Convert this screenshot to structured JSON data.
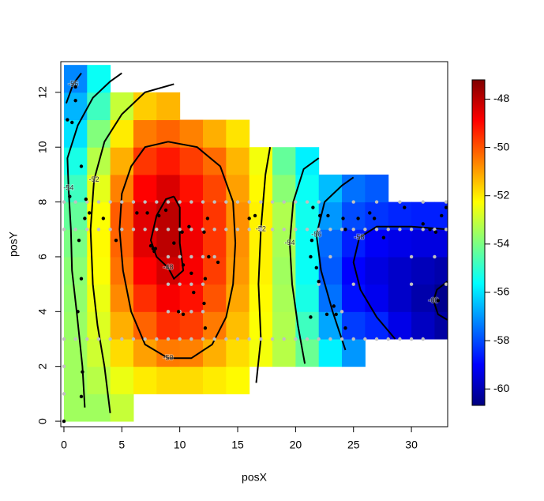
{
  "chart_data": {
    "type": "heatmap",
    "x_label": "posX",
    "y_label": "posY",
    "xlim": [
      -0.27,
      33.13
    ],
    "ylim": [
      -0.2,
      13.12
    ],
    "xticks": [
      0,
      5,
      10,
      15,
      20,
      25,
      30
    ],
    "yticks": [
      0,
      2,
      4,
      6,
      8,
      10,
      12
    ],
    "heatmap": {
      "x": [
        1,
        3,
        5,
        7,
        9,
        11,
        13,
        15,
        17,
        19,
        21,
        23,
        25,
        27,
        29,
        31,
        33
      ],
      "y": [
        0.5,
        1.5,
        2.5,
        3.5,
        4.5,
        5.5,
        6.5,
        7.5,
        8.5,
        9.5,
        10.5,
        11.5,
        12.5
      ],
      "z": [
        [
          -53.5,
          -53.5,
          -53.5,
          -53.6,
          -53.7,
          -53.8,
          -54,
          -54.3,
          -54.8,
          -55.3,
          -56,
          -56.6,
          -57.2
        ],
        [
          -53.5,
          -53.2,
          -52.9,
          -52.7,
          -52.5,
          -52.3,
          -52.2,
          -52.3,
          -52.6,
          -53.2,
          -53.9,
          -54.8,
          -55.5
        ],
        [
          -53,
          -52.5,
          -51.8,
          -51.2,
          -50.7,
          -50.4,
          -50.2,
          -50.1,
          -50.6,
          -51.2,
          -52,
          -53,
          null
        ],
        [
          null,
          -52,
          -51,
          -50.2,
          -49.5,
          -48.9,
          -48.5,
          -48.5,
          -48.9,
          -49.6,
          -50.5,
          -51.6,
          null
        ],
        [
          null,
          -51.8,
          -50.5,
          -49.5,
          -48.8,
          -48.3,
          -48,
          -48,
          -48.4,
          -49.2,
          -50.2,
          -51.3,
          null
        ],
        [
          null,
          -51.8,
          -50.6,
          -49.7,
          -49.1,
          -48.8,
          -48.7,
          -48.8,
          -49.1,
          -49.7,
          -50.6,
          null,
          null
        ],
        [
          null,
          -52,
          -51.2,
          -50.5,
          -50,
          -49.7,
          -49.6,
          -49.6,
          -49.8,
          -50.3,
          -51.2,
          null,
          null
        ],
        [
          null,
          -52.2,
          -51.8,
          -51.4,
          -51.1,
          -50.9,
          -50.8,
          -50.8,
          -51,
          -51.3,
          -51.9,
          null,
          null
        ],
        [
          null,
          null,
          -52.4,
          -52.3,
          -52.2,
          -52.1,
          -52.1,
          -52.1,
          -52.2,
          -52.4,
          null,
          null,
          null
        ],
        [
          null,
          null,
          -53.2,
          -53.3,
          -53.4,
          -53.5,
          -53.4,
          -53.3,
          -53.8,
          -54.3,
          null,
          null,
          null
        ],
        [
          null,
          null,
          -54.2,
          -54.8,
          -55.3,
          -55.5,
          -55.5,
          -55.4,
          -55.5,
          -55.8,
          null,
          null,
          null
        ],
        [
          null,
          null,
          -55.8,
          -56.8,
          -57.5,
          -57.8,
          -57.6,
          -57,
          -56.5,
          null,
          null,
          null,
          null
        ],
        [
          null,
          null,
          -57,
          -58.2,
          -58.8,
          -59,
          -58.6,
          -58,
          -57.5,
          null,
          null,
          null,
          null
        ],
        [
          null,
          null,
          null,
          -58.5,
          -59.2,
          -59.4,
          -59.1,
          -58.3,
          -57.8,
          null,
          null,
          null,
          null
        ],
        [
          null,
          null,
          null,
          -59.3,
          -59.7,
          -59.7,
          -59.3,
          -58.5,
          null,
          null,
          null,
          null,
          null
        ],
        [
          null,
          null,
          null,
          -59.8,
          -60.1,
          -59.9,
          -59.4,
          -58.6,
          null,
          null,
          null,
          null,
          null
        ],
        [
          null,
          null,
          null,
          -60.2,
          -60.5,
          -60.1,
          -59.4,
          -58.6,
          null,
          null,
          null,
          null,
          null
        ]
      ]
    },
    "colorbar": {
      "lim": [
        -60.68,
        -47.2
      ],
      "ticks": [
        -48,
        -50,
        -52,
        -54,
        -56,
        -58,
        -60
      ],
      "colors": [
        "#00007f",
        "#0000ff",
        "#007fff",
        "#00ffff",
        "#7fff7f",
        "#ffff00",
        "#ff7f00",
        "#ff0000",
        "#7f0000"
      ]
    },
    "contours": [
      {
        "level": -48,
        "x": [
          9.5,
          10,
          10,
          10.3,
          9.5,
          9,
          8,
          7.5,
          8,
          8.8,
          9.5
        ],
        "y": [
          8.2,
          7.8,
          6.5,
          5.5,
          5.2,
          5.6,
          6,
          6.6,
          7.5,
          8.1,
          8.2
        ]
      },
      {
        "level": -50,
        "x": [
          9,
          11.5,
          13.5,
          14.6,
          14.8,
          14.6,
          14,
          12.8,
          11,
          9,
          7,
          5.8,
          5.1,
          4.8,
          5,
          5.8,
          7,
          9
        ],
        "y": [
          10.2,
          10,
          9.3,
          8,
          6.5,
          5,
          3.8,
          2.8,
          2.3,
          2.3,
          2.8,
          4,
          5.5,
          7,
          8.3,
          9.3,
          10,
          10.2
        ]
      },
      {
        "level": -52,
        "x": [
          4,
          3.5,
          2.9,
          2.5,
          2.3,
          2.6,
          3.5,
          5,
          7,
          9.5
        ],
        "y": [
          0.3,
          2,
          3.5,
          5,
          7,
          8.8,
          10.2,
          11.2,
          12,
          12.3
        ]
      },
      {
        "level": -52,
        "x": [
          16.6,
          17,
          16.8,
          17,
          17.4,
          17.8
        ],
        "y": [
          1.4,
          3,
          5,
          7,
          9,
          10
        ]
      },
      {
        "level": -54,
        "x": [
          1.8,
          1.6,
          1.1,
          0.7,
          0.6,
          0.4,
          0.3,
          1.2,
          2.5,
          4,
          5
        ],
        "y": [
          0.5,
          2,
          4,
          5.5,
          7,
          8.5,
          9.6,
          10.8,
          11.8,
          12.4,
          12.7
        ]
      },
      {
        "level": -54,
        "x": [
          20.8,
          20.2,
          19.7,
          19.5,
          19.8,
          20.7,
          22
        ],
        "y": [
          2.1,
          3.5,
          5,
          6.5,
          8,
          9.2,
          9.6
        ]
      },
      {
        "level": -56,
        "x": [
          0.2,
          0.8,
          1.5
        ],
        "y": [
          11.6,
          12.3,
          12.7
        ]
      },
      {
        "level": -56,
        "x": [
          24.3,
          23.2,
          22.2,
          21.8,
          22.5,
          24,
          25
        ],
        "y": [
          2.6,
          4,
          5.5,
          6.8,
          8,
          8.6,
          8.9
        ]
      },
      {
        "level": -58,
        "x": [
          28.6,
          27,
          25.6,
          25,
          25.5,
          27,
          30,
          33.1
        ],
        "y": [
          3,
          3.8,
          4.8,
          5.8,
          6.7,
          7.1,
          7.1,
          7
        ]
      },
      {
        "level": -60,
        "x": [
          33.1,
          32.2,
          31.9,
          32.3,
          33.1
        ],
        "y": [
          5.1,
          4.8,
          4.4,
          3.9,
          3.7
        ]
      }
    ],
    "series": [
      {
        "color": "#c0c0c0",
        "x": [
          0,
          1,
          2,
          3,
          4,
          5,
          6,
          7,
          8,
          9,
          10,
          11,
          12,
          13,
          14,
          15,
          16,
          17,
          18,
          19,
          20,
          21,
          22,
          25,
          27,
          29,
          31,
          33,
          0,
          1,
          2,
          3,
          4,
          5,
          6,
          7,
          8,
          9,
          10,
          11,
          12,
          13,
          14,
          15,
          16,
          17,
          18,
          19,
          20,
          21,
          22,
          23,
          24,
          25,
          26,
          27,
          28,
          29,
          30,
          31,
          32,
          33,
          0,
          1,
          2,
          3,
          4,
          5,
          6,
          7,
          8,
          9,
          10,
          11,
          12,
          13,
          14,
          15,
          16,
          17,
          18,
          19,
          20,
          21,
          22,
          23,
          24,
          25,
          26,
          27,
          28,
          29,
          30,
          31,
          9,
          10,
          11,
          12,
          13,
          23,
          30,
          32,
          9,
          10,
          11,
          12,
          22,
          25,
          30,
          33,
          9,
          10,
          11,
          12,
          24,
          0,
          0,
          0
        ],
        "y": [
          8,
          8,
          8,
          8,
          8,
          8,
          8,
          8,
          8,
          8,
          8,
          8,
          8,
          8,
          8,
          8,
          8,
          8,
          8,
          8,
          8,
          8,
          8,
          8,
          8,
          8,
          8,
          8,
          7,
          7,
          7,
          7,
          7,
          7,
          7,
          7,
          7,
          7,
          7,
          7,
          7,
          7,
          7,
          7,
          7,
          7,
          7,
          7,
          7,
          7,
          7,
          7,
          7,
          7,
          7,
          7,
          7,
          7,
          7,
          7,
          7,
          7,
          3,
          3,
          3,
          3,
          3,
          3,
          3,
          3,
          3,
          3,
          3,
          3,
          3,
          3,
          3,
          3,
          3,
          3,
          3,
          3,
          3,
          3,
          3,
          3,
          3,
          3,
          3,
          3,
          3,
          3,
          3,
          3,
          6,
          6,
          6,
          6,
          6,
          6,
          6,
          6,
          5,
          5,
          5,
          5,
          5,
          5,
          5,
          5,
          4,
          4,
          4,
          4,
          4,
          0,
          1,
          2
        ]
      },
      {
        "color": "#000000",
        "x": [
          0,
          1.5,
          1.6,
          1.2,
          1.5,
          1.3,
          0.5,
          1.8,
          2.2,
          1.9,
          0.3,
          0.7,
          1,
          1,
          1.5,
          3.4,
          4.5,
          6.3,
          7.2,
          7.5,
          7.7,
          7.8,
          7.9,
          8.2,
          8.8,
          9.5,
          10.2,
          10.3,
          10.8,
          11,
          11.2,
          10.3,
          9.9,
          12.1,
          12.2,
          12.2,
          12.5,
          12.1,
          12.4,
          13.3,
          16,
          16.5,
          21.5,
          22.1,
          21.4,
          22.8,
          24.1,
          24.3,
          25.4,
          26.4,
          26.8,
          27.6,
          29.4,
          31,
          31.6,
          32.1,
          32.6,
          33,
          21.3,
          22,
          21.8,
          23.3,
          23.5,
          24.3,
          21.3,
          22.7,
          32.3
        ],
        "y": [
          0,
          0.9,
          1.8,
          4,
          5.2,
          6.6,
          8.2,
          7.4,
          7.6,
          8.1,
          11,
          10.9,
          11.7,
          12.2,
          9.3,
          7.4,
          6.6,
          7.6,
          7.6,
          6.4,
          6.3,
          6.2,
          6.3,
          7.5,
          7.7,
          6.5,
          6.9,
          5.7,
          7.1,
          5.4,
          4.7,
          3.9,
          4,
          4.3,
          3.4,
          5.2,
          6,
          6.9,
          7.4,
          5.8,
          7.4,
          7.5,
          7.8,
          7.5,
          6.6,
          7.5,
          7.4,
          7,
          7.4,
          7.6,
          7.4,
          6.7,
          7.8,
          7.2,
          7,
          6.9,
          7.5,
          7.8,
          6,
          5.1,
          5.6,
          4.2,
          3.9,
          3.4,
          3.8,
          3.9,
          4.4
        ]
      }
    ]
  }
}
